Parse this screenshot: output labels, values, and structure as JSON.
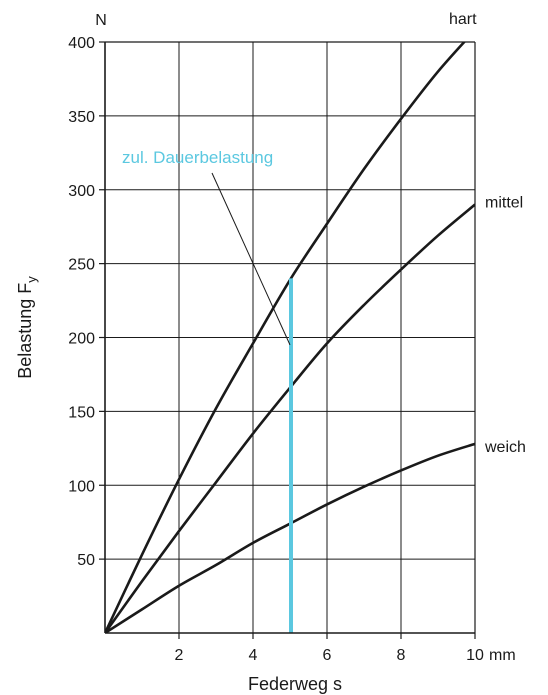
{
  "chart_data": {
    "type": "line",
    "xlabel": "Federweg s",
    "xunit": "mm",
    "ylabel": "Belastung F",
    "ylabel_sub": "y",
    "yunit": "N",
    "xlim": [
      0,
      10
    ],
    "ylim": [
      0,
      400
    ],
    "x_ticks": [
      2,
      4,
      6,
      8,
      10
    ],
    "y_ticks": [
      50,
      100,
      150,
      200,
      250,
      300,
      350,
      400
    ],
    "grid": true,
    "series": [
      {
        "name": "hart",
        "x": [
          0,
          1,
          2,
          3,
          4,
          5,
          6,
          7,
          8,
          9,
          10
        ],
        "y": [
          0,
          53,
          104,
          152,
          196,
          239,
          277,
          314,
          348,
          380,
          408
        ]
      },
      {
        "name": "mittel",
        "x": [
          0,
          1,
          2,
          3,
          4,
          5,
          6,
          7,
          8,
          9,
          10
        ],
        "y": [
          0,
          35,
          69,
          102,
          135,
          166,
          196,
          222,
          246,
          269,
          290
        ]
      },
      {
        "name": "weich",
        "x": [
          0,
          1,
          2,
          3,
          4,
          5,
          6,
          7,
          8,
          9,
          10
        ],
        "y": [
          0,
          16,
          32,
          46,
          61,
          74,
          87,
          99,
          110,
          120,
          128
        ]
      }
    ],
    "annotation": {
      "text": "zul. Dauerbelastung",
      "x": 5,
      "y_from": 0,
      "y_to": 240,
      "color": "#5bc8e0"
    }
  }
}
